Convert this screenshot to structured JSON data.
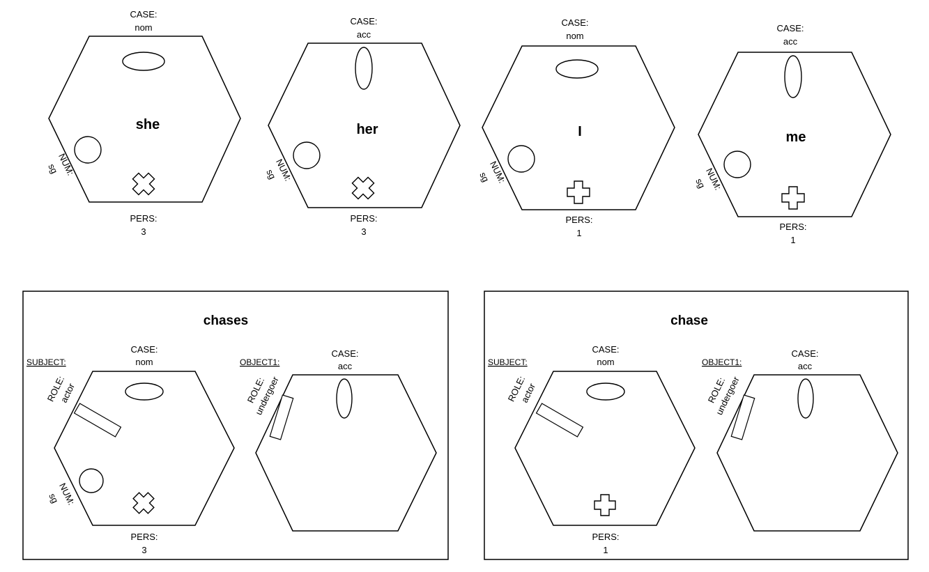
{
  "labels": {
    "case": "CASE:",
    "num": "NUM:",
    "pers": "PERS:",
    "role": "ROLE:"
  },
  "values": {
    "nom": "nom",
    "acc": "acc",
    "sg": "sg",
    "three": "3",
    "one": "1",
    "actor": "actor",
    "undergoer": "undergoer"
  },
  "words": {
    "she": "she",
    "her": "her",
    "i": "I",
    "me": "me"
  },
  "verbs": {
    "chases": {
      "title": "chases",
      "subject": "SUBJECT:",
      "object": "OBJECT1:"
    },
    "chase": {
      "title": "chase",
      "subject": "SUBJECT:",
      "object": "OBJECT1:"
    }
  }
}
